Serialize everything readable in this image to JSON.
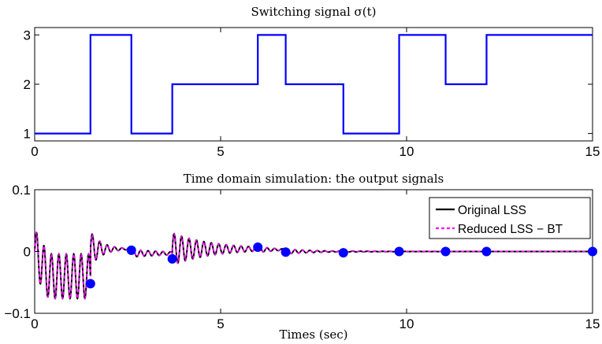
{
  "chart_data": [
    {
      "type": "line",
      "title": "Switching signal σ(t)",
      "xlabel": "",
      "ylabel": "",
      "xlim": [
        0,
        15
      ],
      "ylim": [
        0.85,
        3.15
      ],
      "xticks": [
        0,
        5,
        10,
        15
      ],
      "yticks": [
        1,
        2,
        3
      ],
      "grid": false,
      "series": [
        {
          "color": "#0000ff",
          "step": true,
          "x": [
            0,
            1.5,
            1.5,
            2.6,
            2.6,
            3.7,
            3.7,
            6.0,
            6.0,
            6.75,
            6.75,
            8.3,
            8.3,
            9.8,
            9.8,
            11.05,
            11.05,
            12.15,
            12.15,
            15
          ],
          "y": [
            1,
            1,
            3,
            3,
            1,
            1,
            2,
            2,
            3,
            3,
            2,
            2,
            1,
            1,
            3,
            3,
            2,
            2,
            3,
            3
          ]
        }
      ]
    },
    {
      "type": "line",
      "title": "Time domain simulation: the output signals",
      "xlabel": "Times (sec)",
      "ylabel": "",
      "xlim": [
        0,
        15
      ],
      "ylim": [
        -0.1,
        0.1
      ],
      "xticks": [
        0,
        5,
        10,
        15
      ],
      "yticks": [
        -0.1,
        0,
        0.1
      ],
      "ytick_labels": [
        "−0.1",
        "0",
        "0.1"
      ],
      "grid": false,
      "legend_position": "top-right",
      "series": [
        {
          "name": "Original LSS",
          "color": "#000000",
          "style": "solid",
          "segments": [
            {
              "start": 0,
              "end": 1.5,
              "amp": 0.036,
              "decay": 0,
              "period": 0.2,
              "offset": -0.04,
              "rel_start": 0.0,
              "rel_end": -0.05
            },
            {
              "start": 1.5,
              "end": 2.6,
              "amp": 0.028,
              "decay": 3.2,
              "period": 0.2,
              "offset": 0.004
            },
            {
              "start": 2.6,
              "end": 3.7,
              "amp": 0.006,
              "decay": 0.8,
              "period": 0.2,
              "offset": -0.003
            },
            {
              "start": 3.7,
              "end": 6.0,
              "amp": 0.026,
              "decay": 0.9,
              "period": 0.2,
              "offset": 0.004
            },
            {
              "start": 6.0,
              "end": 6.75,
              "amp": 0.005,
              "decay": 2.0,
              "period": 0.2,
              "offset": 0.003
            },
            {
              "start": 6.75,
              "end": 8.3,
              "amp": 0.004,
              "decay": 1.2,
              "period": 0.2,
              "offset": 0.0
            },
            {
              "start": 8.3,
              "end": 15,
              "amp": 0.0008,
              "decay": 0.8,
              "period": 0.2,
              "offset": 0.0
            }
          ]
        },
        {
          "name": "Reduced LSS − BT",
          "color": "#ff00ff",
          "style": "dashed",
          "same_as": "Original LSS"
        }
      ],
      "markers": {
        "color": "#0000ff",
        "x": [
          1.5,
          2.6,
          3.7,
          6.0,
          6.75,
          8.3,
          9.8,
          11.05,
          12.15,
          15
        ],
        "y": [
          -0.052,
          0.002,
          -0.012,
          0.007,
          -0.001,
          -0.002,
          0.0,
          0.0,
          0.0,
          0.0
        ]
      }
    }
  ]
}
